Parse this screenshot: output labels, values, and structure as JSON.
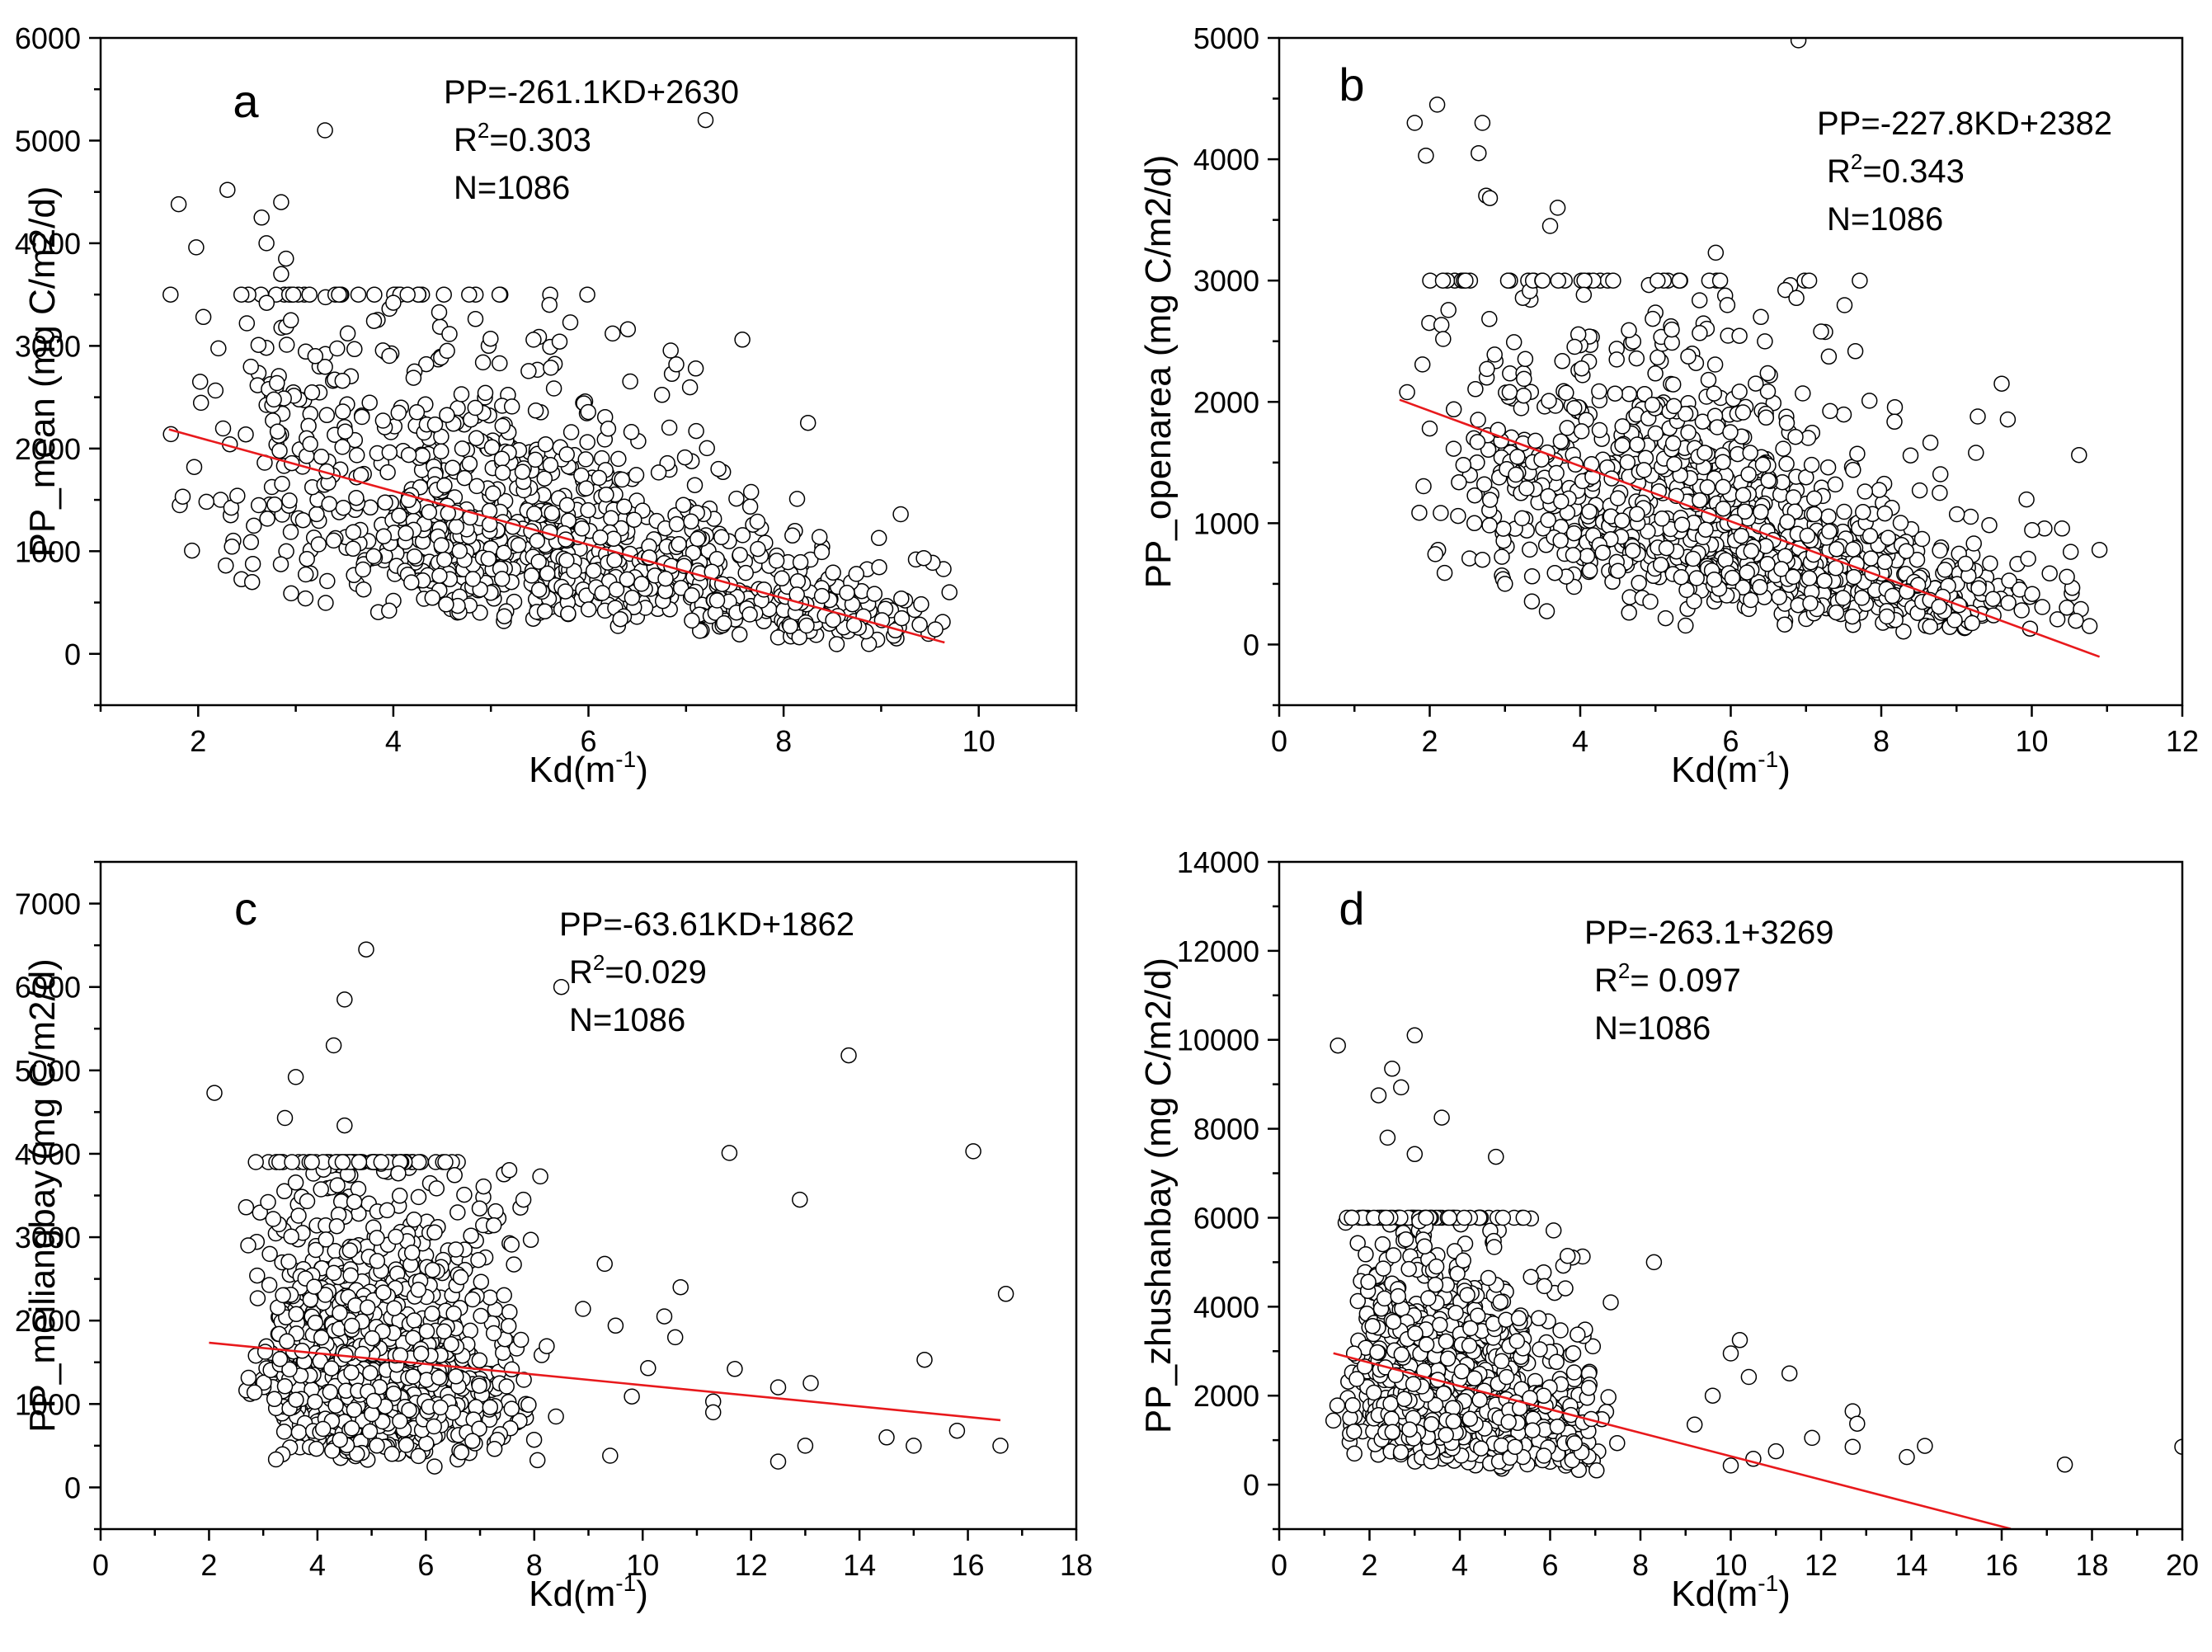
{
  "figure": {
    "background": "#ffffff",
    "marker_fill": "#ffffff",
    "marker_stroke": "#000000",
    "fit_color": "#e8191c"
  },
  "chart_data": [
    {
      "type": "scatter",
      "panel_label": "a",
      "xlabel_main": "Kd(m",
      "xlabel_sup": "-1",
      "xlabel_close": ")",
      "ylabel": "PP_mean (mg C/m2/d)",
      "xlim": [
        1,
        11
      ],
      "ylim": [
        -500,
        6000
      ],
      "xticks": [
        2,
        4,
        6,
        8,
        10
      ],
      "yticks": [
        0,
        1000,
        2000,
        3000,
        4000,
        5000,
        6000
      ],
      "x_minor": 1,
      "y_minor": 500,
      "equation": {
        "line1": "PP=-261.1KD+2630",
        "r2_prefix": "R",
        "r2_sup": "2",
        "r2_value": "=0.303",
        "n": "N=1086"
      },
      "fit": {
        "slope": -261.1,
        "intercept": 2630,
        "x_start": 1.7,
        "x_end": 9.65
      },
      "n_points": 1086,
      "sample_spec": {
        "seed": 11,
        "x_range": [
          1.7,
          9.7
        ],
        "x_mode": 5.2,
        "y_min": 80,
        "y_max": 3500,
        "noise": 0.55
      },
      "highlighted_points": [
        {
          "x": 1.72,
          "y": 2140
        },
        {
          "x": 1.8,
          "y": 4380
        },
        {
          "x": 1.98,
          "y": 3960
        },
        {
          "x": 2.02,
          "y": 2650
        },
        {
          "x": 2.3,
          "y": 4520
        },
        {
          "x": 2.65,
          "y": 4250
        },
        {
          "x": 2.7,
          "y": 4000
        },
        {
          "x": 2.85,
          "y": 4400
        },
        {
          "x": 2.9,
          "y": 3850
        },
        {
          "x": 2.85,
          "y": 3700
        },
        {
          "x": 3.3,
          "y": 5100
        },
        {
          "x": 7.2,
          "y": 5200
        },
        {
          "x": 5.6,
          "y": 3400
        },
        {
          "x": 4.0,
          "y": 3420
        },
        {
          "x": 3.1,
          "y": 540
        },
        {
          "x": 6.9,
          "y": 2820
        },
        {
          "x": 7.1,
          "y": 2780
        },
        {
          "x": 8.25,
          "y": 2250
        },
        {
          "x": 9.2,
          "y": 1360
        },
        {
          "x": 9.7,
          "y": 600
        },
        {
          "x": 3.2,
          "y": 2900
        },
        {
          "x": 2.95,
          "y": 3250
        }
      ]
    },
    {
      "type": "scatter",
      "panel_label": "b",
      "xlabel_main": "Kd(m",
      "xlabel_sup": "-1",
      "xlabel_close": ")",
      "ylabel": "PP_openarea (mg C/m2/d)",
      "xlim": [
        0,
        12
      ],
      "ylim": [
        -500,
        5000
      ],
      "xticks": [
        0,
        2,
        4,
        6,
        8,
        10,
        12
      ],
      "yticks": [
        0,
        1000,
        2000,
        3000,
        4000,
        5000
      ],
      "x_minor": 1,
      "y_minor": 500,
      "equation": {
        "line1": "PP=-227.8KD+2382",
        "r2_prefix": "R",
        "r2_sup": "2",
        "r2_value": "=0.343",
        "n": "N=1086"
      },
      "fit": {
        "slope": -227.8,
        "intercept": 2382,
        "x_start": 1.6,
        "x_end": 10.9
      },
      "n_points": 1086,
      "sample_spec": {
        "seed": 23,
        "x_range": [
          1.6,
          10.9
        ],
        "x_mode": 5.6,
        "y_min": 80,
        "y_max": 3000,
        "noise": 0.55
      },
      "highlighted_points": [
        {
          "x": 1.7,
          "y": 2080
        },
        {
          "x": 1.8,
          "y": 4300
        },
        {
          "x": 1.95,
          "y": 4030
        },
        {
          "x": 2.1,
          "y": 4450
        },
        {
          "x": 2.7,
          "y": 4300
        },
        {
          "x": 2.65,
          "y": 4050
        },
        {
          "x": 2.75,
          "y": 3700
        },
        {
          "x": 2.8,
          "y": 3680
        },
        {
          "x": 3.7,
          "y": 3600
        },
        {
          "x": 3.6,
          "y": 3450
        },
        {
          "x": 5.8,
          "y": 3230
        },
        {
          "x": 6.9,
          "y": 4980
        },
        {
          "x": 2.0,
          "y": 1780
        },
        {
          "x": 3.0,
          "y": 500
        },
        {
          "x": 9.6,
          "y": 2150
        },
        {
          "x": 10.9,
          "y": 780
        },
        {
          "x": 7.2,
          "y": 2580
        },
        {
          "x": 6.4,
          "y": 2700
        }
      ]
    },
    {
      "type": "scatter",
      "panel_label": "c",
      "xlabel_main": "Kd(m",
      "xlabel_sup": "-1",
      "xlabel_close": ")",
      "ylabel": "PP_meiliangbay (mg C/m2/d)",
      "xlim": [
        0,
        18
      ],
      "ylim": [
        -500,
        7500
      ],
      "xticks": [
        0,
        2,
        4,
        6,
        8,
        10,
        12,
        14,
        16,
        18
      ],
      "yticks": [
        0,
        1000,
        2000,
        3000,
        4000,
        5000,
        6000,
        7000
      ],
      "x_minor": 1,
      "y_minor": 500,
      "equation": {
        "line1": "PP=-63.61KD+1862",
        "r2_prefix": "R",
        "r2_sup": "2",
        "r2_value": "=0.029",
        "n": "N=1086"
      },
      "fit": {
        "slope": -63.61,
        "intercept": 1862,
        "x_start": 2.0,
        "x_end": 16.6
      },
      "n_points": 1086,
      "sample_spec": {
        "seed": 37,
        "x_range": [
          2.5,
          8.3
        ],
        "x_mode": 4.5,
        "y_min": 120,
        "y_max": 3900,
        "noise": 0.6
      },
      "highlighted_points": [
        {
          "x": 2.1,
          "y": 4730
        },
        {
          "x": 3.4,
          "y": 4430
        },
        {
          "x": 3.6,
          "y": 4920
        },
        {
          "x": 4.3,
          "y": 5300
        },
        {
          "x": 4.5,
          "y": 5850
        },
        {
          "x": 4.9,
          "y": 6450
        },
        {
          "x": 4.5,
          "y": 4340
        },
        {
          "x": 8.5,
          "y": 6000
        },
        {
          "x": 7.8,
          "y": 3450
        },
        {
          "x": 8.9,
          "y": 2140
        },
        {
          "x": 9.3,
          "y": 2680
        },
        {
          "x": 9.5,
          "y": 1940
        },
        {
          "x": 9.8,
          "y": 1090
        },
        {
          "x": 10.1,
          "y": 1430
        },
        {
          "x": 10.4,
          "y": 2050
        },
        {
          "x": 10.7,
          "y": 2400
        },
        {
          "x": 10.6,
          "y": 1800
        },
        {
          "x": 11.3,
          "y": 1030
        },
        {
          "x": 11.3,
          "y": 900
        },
        {
          "x": 11.6,
          "y": 4010
        },
        {
          "x": 11.7,
          "y": 1420
        },
        {
          "x": 12.5,
          "y": 1200
        },
        {
          "x": 12.5,
          "y": 310
        },
        {
          "x": 12.9,
          "y": 3450
        },
        {
          "x": 13.0,
          "y": 500
        },
        {
          "x": 13.1,
          "y": 1250
        },
        {
          "x": 13.8,
          "y": 5180
        },
        {
          "x": 14.5,
          "y": 600
        },
        {
          "x": 15.0,
          "y": 500
        },
        {
          "x": 15.2,
          "y": 1530
        },
        {
          "x": 15.8,
          "y": 680
        },
        {
          "x": 16.1,
          "y": 4030
        },
        {
          "x": 16.6,
          "y": 500
        },
        {
          "x": 16.7,
          "y": 2320
        },
        {
          "x": 9.4,
          "y": 380
        },
        {
          "x": 8.4,
          "y": 850
        }
      ]
    },
    {
      "type": "scatter",
      "panel_label": "d",
      "xlabel_main": "Kd(m",
      "xlabel_sup": "-1",
      "xlabel_close": ")",
      "ylabel": "PP_zhushanbay (mg C/m2/d)",
      "xlim": [
        0,
        20
      ],
      "ylim": [
        -1000,
        14000
      ],
      "xticks": [
        0,
        2,
        4,
        6,
        8,
        10,
        12,
        14,
        16,
        18,
        20
      ],
      "yticks": [
        0,
        2000,
        4000,
        6000,
        8000,
        10000,
        12000,
        14000
      ],
      "x_minor": 1,
      "y_minor": 1000,
      "equation": {
        "line1": "PP=-263.1+3269",
        "r2_prefix": "R",
        "r2_sup": "2",
        "r2_value": "= 0.097",
        "n": "N=1086"
      },
      "fit": {
        "slope": -263.1,
        "intercept": 3269,
        "x_start": 1.2,
        "x_end": 16.2
      },
      "n_points": 1086,
      "sample_spec": {
        "seed": 53,
        "x_range": [
          1.2,
          7.5
        ],
        "x_mode": 3.2,
        "y_min": 80,
        "y_max": 6000,
        "noise": 0.6
      },
      "highlighted_points": [
        {
          "x": 1.2,
          "y": 1440
        },
        {
          "x": 1.3,
          "y": 9870
        },
        {
          "x": 2.2,
          "y": 8750
        },
        {
          "x": 2.4,
          "y": 7800
        },
        {
          "x": 2.5,
          "y": 9350
        },
        {
          "x": 2.7,
          "y": 8930
        },
        {
          "x": 3.0,
          "y": 10100
        },
        {
          "x": 3.0,
          "y": 7430
        },
        {
          "x": 3.6,
          "y": 8250
        },
        {
          "x": 4.8,
          "y": 7370
        },
        {
          "x": 8.3,
          "y": 5000
        },
        {
          "x": 9.6,
          "y": 2000
        },
        {
          "x": 10.0,
          "y": 2950
        },
        {
          "x": 10.2,
          "y": 3250
        },
        {
          "x": 10.4,
          "y": 2420
        },
        {
          "x": 10.5,
          "y": 580
        },
        {
          "x": 11.3,
          "y": 2500
        },
        {
          "x": 11.0,
          "y": 750
        },
        {
          "x": 11.8,
          "y": 1050
        },
        {
          "x": 12.7,
          "y": 1650
        },
        {
          "x": 12.8,
          "y": 1370
        },
        {
          "x": 12.7,
          "y": 850
        },
        {
          "x": 13.9,
          "y": 620
        },
        {
          "x": 14.3,
          "y": 870
        },
        {
          "x": 17.4,
          "y": 450
        },
        {
          "x": 20.0,
          "y": 850
        },
        {
          "x": 10.0,
          "y": 430
        },
        {
          "x": 9.2,
          "y": 1350
        }
      ]
    }
  ]
}
